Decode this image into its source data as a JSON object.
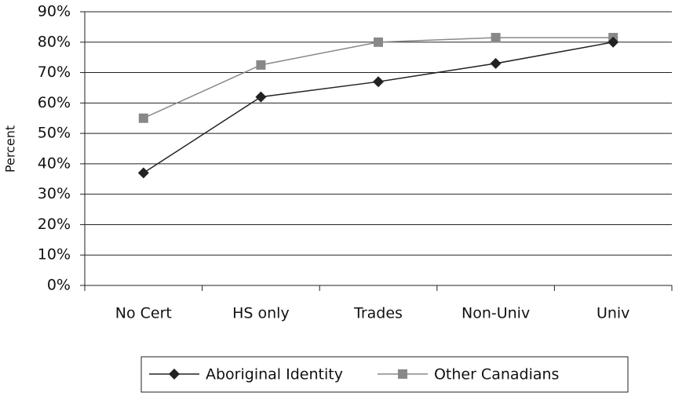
{
  "chart_data": {
    "type": "line",
    "y_label": "Percent",
    "categories": [
      "No Cert",
      "HS only",
      "Trades",
      "Non-Univ",
      "Univ"
    ],
    "series": [
      {
        "name": "Aboriginal Identity",
        "color": "#222222",
        "marker": "diamond",
        "values": [
          37,
          62,
          67,
          73,
          80
        ]
      },
      {
        "name": "Other Canadians",
        "color": "#888888",
        "marker": "square",
        "values": [
          55,
          72.5,
          80,
          81.5,
          81.5
        ]
      }
    ],
    "ylim": [
      0,
      90
    ],
    "yticks": [
      {
        "value": 0,
        "label": "0%"
      },
      {
        "value": 10,
        "label": "10%"
      },
      {
        "value": 20,
        "label": "20%"
      },
      {
        "value": 30,
        "label": "30%"
      },
      {
        "value": 40,
        "label": "40%"
      },
      {
        "value": 50,
        "label": "50%"
      },
      {
        "value": 60,
        "label": "60%"
      },
      {
        "value": 70,
        "label": "70%"
      },
      {
        "value": 80,
        "label": "80%"
      },
      {
        "value": 90,
        "label": "90%"
      }
    ],
    "grid": true,
    "legend": "bottom"
  }
}
